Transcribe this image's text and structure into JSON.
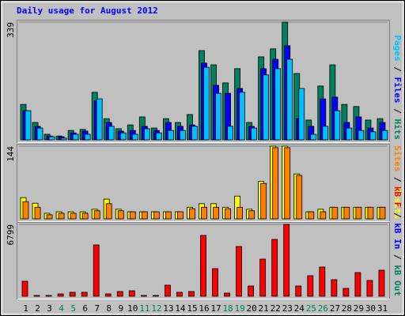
{
  "title": "Daily usage for August 2012",
  "chart_data": [
    {
      "type": "bar",
      "ylim": [
        0,
        339
      ],
      "yticks": [
        339
      ],
      "legend_separator": " / ",
      "series": [
        {
          "name": "Pages",
          "color": "#00c0ff",
          "values": [
            84,
            34,
            9,
            5,
            16,
            16,
            118,
            39,
            20,
            16,
            32,
            20,
            27,
            27,
            39,
            209,
            134,
            39,
            137,
            34,
            187,
            205,
            232,
            148,
            16,
            39,
            84,
            34,
            27,
            23,
            27
          ]
        },
        {
          "name": "Files",
          "color": "#0000ff",
          "values": [
            84,
            39,
            11,
            9,
            20,
            25,
            112,
            50,
            25,
            27,
            39,
            27,
            50,
            39,
            43,
            221,
            157,
            134,
            148,
            39,
            205,
            232,
            271,
            61,
            39,
            118,
            123,
            50,
            66,
            34,
            50
          ]
        },
        {
          "name": "Hits",
          "color": "#00805c",
          "values": [
            102,
            50,
            16,
            11,
            27,
            30,
            137,
            61,
            32,
            43,
            66,
            34,
            61,
            50,
            73,
            257,
            216,
            164,
            205,
            50,
            239,
            262,
            339,
            191,
            57,
            155,
            216,
            102,
            96,
            57,
            61
          ]
        }
      ]
    },
    {
      "type": "bar",
      "ylim": [
        0,
        144
      ],
      "yticks": [
        144
      ],
      "legend_separator": " / ",
      "series": [
        {
          "name": "Sites",
          "color": "#ff8000",
          "values": [
            34,
            23,
            8,
            11,
            11,
            11,
            16,
            30,
            16,
            14,
            14,
            14,
            14,
            14,
            20,
            23,
            23,
            20,
            23,
            16,
            70,
            141,
            141,
            86,
            14,
            14,
            23,
            23,
            23,
            23,
            23
          ]
        },
        {
          "name": "Visits",
          "color": "#ffff00",
          "values": [
            42,
            31,
            11,
            14,
            14,
            14,
            19,
            39,
            19,
            14,
            14,
            14,
            14,
            14,
            23,
            30,
            30,
            23,
            45,
            19,
            74,
            144,
            144,
            89,
            14,
            19,
            23,
            23,
            23,
            23,
            23
          ]
        }
      ]
    },
    {
      "type": "bar",
      "ylim": [
        0,
        6799
      ],
      "yticks": [
        6799
      ],
      "legend_separator": " / ",
      "categories": [
        "1",
        "2",
        "3",
        "4",
        "5",
        "6",
        "7",
        "8",
        "9",
        "10",
        "11",
        "12",
        "13",
        "14",
        "15",
        "16",
        "17",
        "18",
        "19",
        "20",
        "21",
        "22",
        "23",
        "24",
        "25",
        "26",
        "27",
        "28",
        "29",
        "30",
        "31"
      ],
      "category_colors": [
        "#000000",
        "#000000",
        "#000000",
        "#00805c",
        "#00805c",
        "#000000",
        "#000000",
        "#000000",
        "#000000",
        "#000000",
        "#00805c",
        "#00805c",
        "#000000",
        "#000000",
        "#000000",
        "#000000",
        "#000000",
        "#00805c",
        "#00805c",
        "#000000",
        "#000000",
        "#000000",
        "#000000",
        "#000000",
        "#00805c",
        "#00805c",
        "#000000",
        "#000000",
        "#000000",
        "#000000",
        "#000000"
      ],
      "series": [
        {
          "name": "kB F",
          "color": "#ff0000",
          "values": [
            1420,
            75,
            75,
            224,
            374,
            374,
            4856,
            224,
            448,
            523,
            75,
            75,
            1046,
            374,
            448,
            5752,
            2615,
            299,
            4706,
            971,
            3511,
            5379,
            6799,
            971,
            1942,
            2764,
            1569,
            747,
            2241,
            1494,
            2465
          ]
        }
      ],
      "legend_extra": [
        {
          "name": "kB In",
          "color": "#0000ff"
        },
        {
          "name": "kB Out",
          "color": "#00805c"
        }
      ]
    }
  ]
}
